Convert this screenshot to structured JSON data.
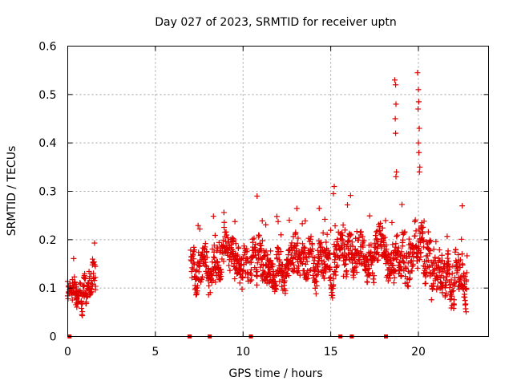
{
  "chart_data": {
    "type": "scatter",
    "title": "Day 027 of 2023, SRMTID for receiver uptn",
    "xlabel": "GPS time / hours",
    "ylabel": "SRMTID / TECUs",
    "xlim": [
      0,
      24
    ],
    "ylim": [
      0,
      0.6
    ],
    "x_ticks": [
      0,
      5,
      10,
      15,
      20
    ],
    "y_ticks": [
      0,
      0.1,
      0.2,
      0.3,
      0.4,
      0.5,
      0.6
    ],
    "x_tick_labels": [
      "0",
      "5",
      "10",
      "15",
      "20"
    ],
    "y_tick_labels": [
      "0",
      "0.1",
      "0.2",
      "0.3",
      "0.4",
      "0.5",
      "0.6"
    ],
    "grid": true,
    "marker": "plus",
    "series_color": "#e00000",
    "series": [
      {
        "name": "SRMTID",
        "segments": [
          {
            "x_start": 0.0,
            "x_end": 1.6,
            "base": 0.085,
            "spread": 0.04
          },
          {
            "x_start": 7.0,
            "x_end": 10.3,
            "base": 0.16,
            "spread": 0.05
          },
          {
            "x_start": 10.4,
            "x_end": 18.3,
            "base": 0.16,
            "spread": 0.05
          },
          {
            "x_start": 18.3,
            "x_end": 22.8,
            "base": 0.14,
            "spread": 0.06
          }
        ],
        "spikes": [
          {
            "x": 18.65,
            "y": 0.53
          },
          {
            "x": 18.7,
            "y": 0.52
          },
          {
            "x": 18.72,
            "y": 0.48
          },
          {
            "x": 18.68,
            "y": 0.45
          },
          {
            "x": 18.7,
            "y": 0.42
          },
          {
            "x": 18.75,
            "y": 0.34
          },
          {
            "x": 18.72,
            "y": 0.33
          },
          {
            "x": 19.95,
            "y": 0.545
          },
          {
            "x": 20.0,
            "y": 0.51
          },
          {
            "x": 20.02,
            "y": 0.485
          },
          {
            "x": 19.98,
            "y": 0.47
          },
          {
            "x": 20.05,
            "y": 0.43
          },
          {
            "x": 20.0,
            "y": 0.4
          },
          {
            "x": 20.03,
            "y": 0.38
          },
          {
            "x": 20.08,
            "y": 0.35
          },
          {
            "x": 20.06,
            "y": 0.34
          },
          {
            "x": 15.2,
            "y": 0.31
          },
          {
            "x": 15.15,
            "y": 0.295
          },
          {
            "x": 10.8,
            "y": 0.29
          },
          {
            "x": 22.5,
            "y": 0.27
          }
        ],
        "zero_points": [
          0.1,
          6.95,
          8.1,
          10.45,
          15.55,
          16.2,
          18.15
        ]
      }
    ]
  }
}
